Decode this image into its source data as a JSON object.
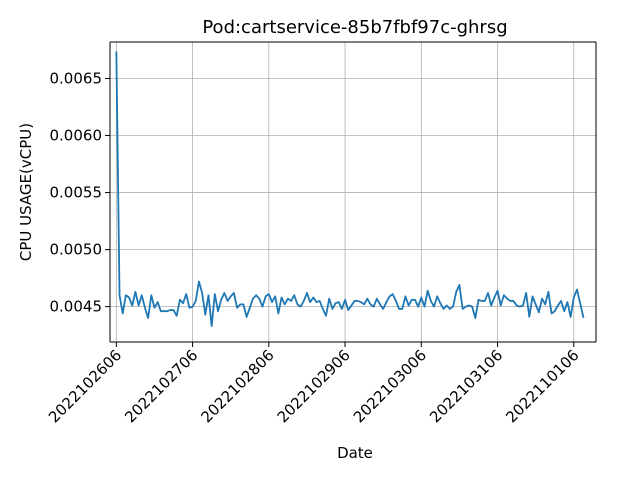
{
  "chart_data": {
    "type": "line",
    "title": "Pod:cartservice-85b7fbf97c-ghrsg",
    "xlabel": "Date",
    "ylabel": "CPU USAGE(vCPU)",
    "x_ticks": [
      "2022102606",
      "2022102706",
      "2022102806",
      "2022102906",
      "2022103006",
      "2022103106",
      "2022110106"
    ],
    "x_range": [
      -0.0833,
      6.2917
    ],
    "x_step": 0.04167,
    "y_ticks": [
      0.0045,
      0.005,
      0.0055,
      0.006,
      0.0065
    ],
    "y_tick_labels": [
      "0.0045",
      "0.0050",
      "0.0055",
      "0.0060",
      "0.0065"
    ],
    "ylim": [
      0.00419,
      0.00682
    ],
    "grid": true,
    "line_color": "#1f77b4",
    "series": [
      {
        "values": [
          0.00673,
          0.0046,
          0.00444,
          0.0046,
          0.00458,
          0.00451,
          0.00463,
          0.00451,
          0.0046,
          0.00449,
          0.0044,
          0.0046,
          0.00449,
          0.00454,
          0.00446,
          0.00446,
          0.00446,
          0.00447,
          0.00447,
          0.00442,
          0.00456,
          0.00453,
          0.00461,
          0.00449,
          0.0045,
          0.00455,
          0.00472,
          0.00462,
          0.00443,
          0.0046,
          0.00433,
          0.00461,
          0.00446,
          0.00456,
          0.00462,
          0.00455,
          0.00459,
          0.00462,
          0.00449,
          0.00452,
          0.00452,
          0.00441,
          0.00449,
          0.00457,
          0.0046,
          0.00457,
          0.0045,
          0.00459,
          0.00461,
          0.00454,
          0.00459,
          0.00444,
          0.00458,
          0.00452,
          0.00457,
          0.00455,
          0.0046,
          0.00452,
          0.0045,
          0.00455,
          0.00462,
          0.00454,
          0.00458,
          0.00454,
          0.00455,
          0.00448,
          0.00442,
          0.00457,
          0.00448,
          0.00453,
          0.00454,
          0.00448,
          0.00456,
          0.00447,
          0.00451,
          0.00455,
          0.00455,
          0.00454,
          0.00452,
          0.00457,
          0.00452,
          0.0045,
          0.00457,
          0.00452,
          0.00448,
          0.00454,
          0.00459,
          0.00461,
          0.00455,
          0.00448,
          0.00448,
          0.00459,
          0.00451,
          0.00456,
          0.00456,
          0.0045,
          0.00458,
          0.0045,
          0.00464,
          0.00455,
          0.0045,
          0.00459,
          0.00453,
          0.00448,
          0.00451,
          0.00448,
          0.0045,
          0.00463,
          0.00469,
          0.00448,
          0.0045,
          0.00451,
          0.0045,
          0.0044,
          0.00456,
          0.00455,
          0.00455,
          0.00462,
          0.00451,
          0.00458,
          0.00464,
          0.00451,
          0.0046,
          0.00457,
          0.00455,
          0.00455,
          0.00451,
          0.0045,
          0.00451,
          0.00462,
          0.00441,
          0.00459,
          0.00452,
          0.00445,
          0.00457,
          0.00452,
          0.00463,
          0.00444,
          0.00446,
          0.00451,
          0.00455,
          0.00446,
          0.00454,
          0.00441,
          0.00458,
          0.00465,
          0.00453,
          0.00441
        ]
      }
    ]
  }
}
